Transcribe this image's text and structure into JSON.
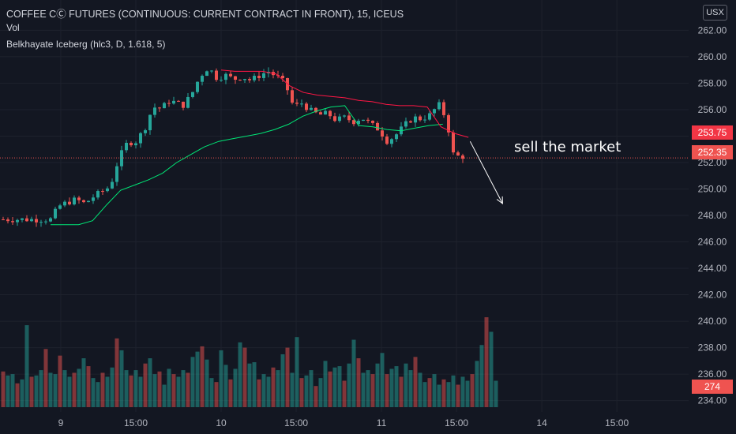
{
  "header": {
    "title": "COFFEE CⒸ FUTURES (CONTINUOUS: CURRENT CONTRACT IN FRONT), 15, ICEUS",
    "vol_label": "Vol",
    "indicator_label": "Belkhayate Iceberg (hlc3, D, 1.618, 5)"
  },
  "currency_button": "USX",
  "annotation": "sell the market",
  "badges": {
    "red_line": "253.75",
    "last_price": "252.35",
    "volume": "274"
  },
  "colors": {
    "up": "#26a69a",
    "down": "#ef5350",
    "band_lower": "#00e676",
    "band_upper": "#ff1744",
    "background": "#131722"
  },
  "chart_data": {
    "type": "candlestick",
    "title": "COFFEE CⒸ FUTURES (CONTINUOUS: CURRENT CONTRACT IN FRONT), 15, ICEUS",
    "ylim": [
      233.5,
      262.8
    ],
    "y_ticks": [
      "234.00",
      "236.00",
      "238.00",
      "240.00",
      "242.00",
      "244.00",
      "246.00",
      "248.00",
      "250.00",
      "252.00",
      "254.00",
      "256.00",
      "258.00",
      "260.00",
      "262.00"
    ],
    "x_ticks": [
      {
        "label": "9",
        "x": 0.12
      },
      {
        "label": "15:00",
        "x": 1.0
      },
      {
        "label": "10",
        "x": 2.0
      },
      {
        "label": "15:00",
        "x": 2.88
      },
      {
        "label": "11",
        "x": 3.88
      },
      {
        "label": "15:00",
        "x": 4.76
      },
      {
        "label": "14",
        "x": 5.76
      },
      {
        "label": "15:00",
        "x": 6.64
      }
    ],
    "price_points": [
      [
        0,
        247.7
      ],
      [
        0.1,
        248.7
      ],
      [
        0.2,
        249.0
      ],
      [
        0.3,
        249.2
      ],
      [
        0.4,
        248.9
      ],
      [
        0.5,
        249.4
      ],
      [
        0.6,
        249.8
      ],
      [
        0.7,
        250.2
      ],
      [
        0.8,
        252.3
      ],
      [
        0.9,
        253.5
      ],
      [
        1.0,
        253.6
      ],
      [
        1.1,
        254.5
      ],
      [
        1.2,
        256.2
      ],
      [
        1.3,
        256.1
      ],
      [
        1.4,
        256.7
      ],
      [
        1.55,
        256.3
      ],
      [
        1.65,
        257.1
      ],
      [
        1.75,
        258.5
      ],
      [
        1.85,
        259.2
      ],
      [
        1.95,
        258.4
      ],
      [
        2.05,
        258.6
      ],
      [
        2.15,
        258.3
      ],
      [
        2.25,
        258.5
      ],
      [
        2.35,
        258.2
      ],
      [
        2.45,
        258.6
      ],
      [
        2.55,
        258.9
      ],
      [
        2.65,
        258.5
      ],
      [
        2.75,
        258.0
      ],
      [
        2.85,
        256.2
      ],
      [
        2.95,
        256.5
      ],
      [
        3.05,
        255.9
      ],
      [
        3.15,
        255.6
      ],
      [
        3.25,
        255.7
      ],
      [
        3.35,
        255.2
      ],
      [
        3.45,
        255.4
      ],
      [
        3.55,
        255.1
      ],
      [
        3.65,
        255.4
      ],
      [
        3.75,
        254.9
      ],
      [
        3.85,
        254.5
      ],
      [
        3.95,
        253.6
      ],
      [
        4.05,
        254.1
      ],
      [
        4.15,
        254.8
      ],
      [
        4.25,
        255.4
      ],
      [
        4.35,
        255.3
      ],
      [
        4.45,
        255.6
      ],
      [
        4.55,
        256.4
      ],
      [
        4.65,
        255.2
      ],
      [
        4.7,
        253.0
      ],
      [
        4.75,
        252.2
      ],
      [
        4.8,
        252.7
      ],
      [
        4.85,
        252.35
      ]
    ],
    "series": [
      {
        "name": "Vol",
        "values": [
          236.2,
          235.9,
          236.0,
          235.3,
          235.6,
          239.7,
          235.8,
          235.9,
          236.3,
          237.9,
          236.1,
          236.0,
          237.4,
          236.3,
          235.8,
          236.1,
          236.4,
          237.2,
          236.6,
          235.7,
          235.4,
          236.1,
          235.8,
          236.5,
          238.7,
          237.8,
          236.3,
          235.9,
          236.3,
          235.8,
          236.8,
          237.2,
          236.0,
          236.2,
          235.2,
          236.4,
          236.0,
          235.8,
          236.3,
          236.1,
          237.3,
          237.7,
          238.1,
          237.1,
          235.7,
          235.4,
          237.8,
          236.7,
          235.6,
          236.4,
          238.4,
          238.0,
          236.8,
          236.9,
          235.6,
          236.0,
          235.8,
          236.5,
          236.3,
          237.5,
          238.0,
          236.1,
          238.8,
          235.7,
          235.9,
          236.3,
          235.1,
          235.7,
          237.0,
          236.2,
          236.5,
          236.6,
          235.5,
          236.8,
          238.6,
          237.2,
          236.1,
          236.3,
          236.0,
          236.8,
          237.6,
          236.0,
          236.4,
          236.6,
          235.8,
          236.8,
          236.3,
          237.3,
          236.1,
          235.4,
          235.7,
          236.0,
          235.2,
          235.6,
          235.4,
          235.9,
          235.2,
          235.8,
          235.5,
          236.0,
          237.0,
          238.2,
          240.3,
          239.2,
          235.5
        ]
      },
      {
        "name": "Lower band",
        "values": [
          247.3,
          247.3,
          247.3,
          247.6,
          248.8,
          249.9,
          250.3,
          250.7,
          251.2,
          252.0,
          252.6,
          253.2,
          253.6,
          253.8,
          254.0,
          254.2,
          254.5,
          254.9,
          255.5,
          255.9,
          256.2,
          256.3,
          254.8,
          254.7,
          254.5,
          254.4,
          254.6,
          254.8,
          254.9
        ]
      },
      {
        "name": "Upper band",
        "values": [
          259.0,
          258.9,
          258.9,
          258.9,
          258.7,
          257.8,
          257.3,
          257.1,
          257.0,
          256.9,
          256.7,
          256.6,
          256.4,
          256.3,
          256.3,
          256.2,
          254.7,
          254.2,
          253.9
        ]
      }
    ]
  }
}
